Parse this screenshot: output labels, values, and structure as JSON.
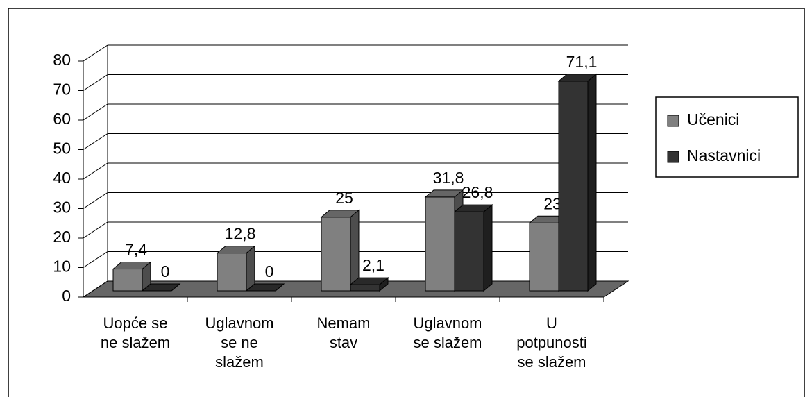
{
  "chart_data": {
    "type": "bar3d",
    "categories": [
      "Uopće se\nne slažem",
      "Uglavnom\nse ne\nslažem",
      "Nemam\nstav",
      "Uglavnom\nse slažem",
      "U\npotpunosti\nse slažem"
    ],
    "series": [
      {
        "name": "Učenici",
        "color": "#808080",
        "values": [
          7.4,
          12.8,
          25,
          31.8,
          23
        ],
        "value_labels": [
          "7,4",
          "12,8",
          "25",
          "31,8",
          "23"
        ]
      },
      {
        "name": "Nastavnici",
        "color": "#333333",
        "values": [
          0,
          0,
          2.1,
          26.8,
          71.1
        ],
        "value_labels": [
          "0",
          "0",
          "2,1",
          "26,8",
          "71,1"
        ]
      }
    ],
    "ylim": [
      0,
      80
    ],
    "yticks": [
      0,
      10,
      20,
      30,
      40,
      50,
      60,
      70,
      80
    ],
    "grid": true,
    "legend": "right"
  }
}
